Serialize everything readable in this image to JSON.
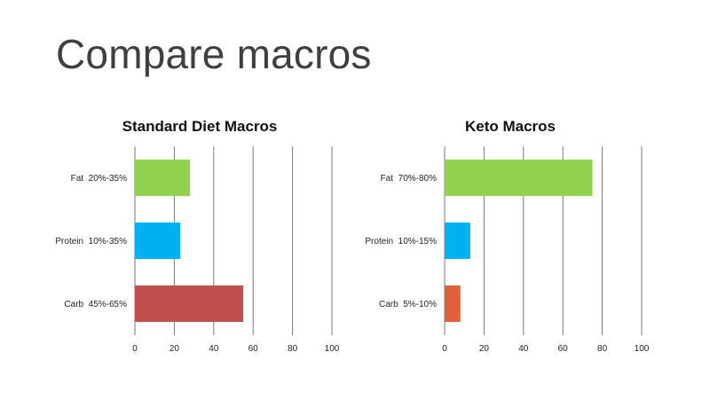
{
  "slide": {
    "title": "Compare macros"
  },
  "chart_data": [
    {
      "type": "bar",
      "orientation": "horizontal",
      "title": "Standard Diet Macros",
      "categories": [
        "Fat  20%-35%",
        "Protein  10%-35%",
        "Carb  45%-65%"
      ],
      "values": [
        28,
        23,
        55
      ],
      "colors": [
        "#92d050",
        "#00b0f0",
        "#c0504d"
      ],
      "xlim": [
        0,
        100
      ],
      "xticks": [
        0,
        20,
        40,
        60,
        80,
        100
      ],
      "grid": true,
      "legend": "none",
      "xlabel": "",
      "ylabel": ""
    },
    {
      "type": "bar",
      "orientation": "horizontal",
      "title": "Keto Macros",
      "categories": [
        "Fat  70%-80%",
        "Protein  10%-15%",
        "Carb  5%-10%"
      ],
      "values": [
        75,
        13,
        8
      ],
      "colors": [
        "#92d050",
        "#00b0f0",
        "#e0603a"
      ],
      "xlim": [
        0,
        100
      ],
      "xticks": [
        0,
        20,
        40,
        60,
        80,
        100
      ],
      "grid": true,
      "legend": "none",
      "xlabel": "",
      "ylabel": ""
    }
  ]
}
